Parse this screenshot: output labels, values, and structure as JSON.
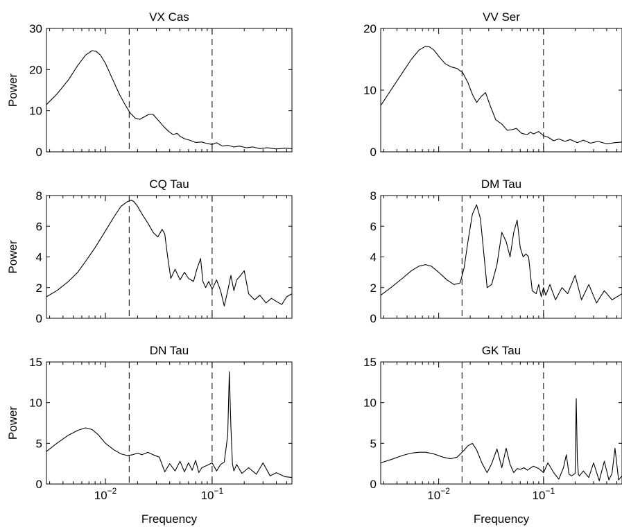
{
  "chart_data": [
    {
      "type": "line",
      "title": "VX Cas",
      "ylabel": "Power",
      "xlabel": "",
      "xscale": "log",
      "xlim": [
        0.0028,
        0.56
      ],
      "ylim": [
        0,
        30
      ],
      "yticks": [
        0,
        10,
        20,
        30
      ],
      "show_x_ticklabels": false,
      "reference_lines_x": [
        0.0167,
        0.1
      ],
      "series": [
        {
          "x": [
            0.0028,
            0.0035,
            0.0045,
            0.0055,
            0.0065,
            0.0075,
            0.0082,
            0.009,
            0.01,
            0.0115,
            0.0135,
            0.0155,
            0.017,
            0.019,
            0.021,
            0.023,
            0.0255,
            0.028,
            0.031,
            0.035,
            0.039,
            0.043,
            0.047,
            0.05,
            0.055,
            0.062,
            0.07,
            0.08,
            0.09,
            0.1,
            0.11,
            0.125,
            0.14,
            0.16,
            0.18,
            0.21,
            0.24,
            0.28,
            0.33,
            0.4,
            0.48,
            0.56
          ],
          "y": [
            11.5,
            14,
            17.5,
            21,
            23.5,
            24.6,
            24.4,
            23.5,
            21.5,
            18,
            14,
            11.2,
            9.5,
            8.2,
            7.9,
            8.5,
            9.1,
            9.1,
            7.8,
            6.2,
            5.0,
            4.2,
            4.5,
            3.8,
            3.2,
            2.8,
            2.3,
            2.4,
            2.0,
            1.8,
            2.2,
            1.4,
            1.6,
            1.2,
            1.4,
            1.0,
            1.2,
            0.8,
            1.0,
            0.7,
            0.9,
            0.8
          ]
        }
      ]
    },
    {
      "type": "line",
      "title": "VV Ser",
      "ylabel": "",
      "xlabel": "",
      "xscale": "log",
      "xlim": [
        0.0028,
        0.56
      ],
      "ylim": [
        0,
        20
      ],
      "yticks": [
        0,
        10,
        20
      ],
      "show_x_ticklabels": false,
      "reference_lines_x": [
        0.0167,
        0.1
      ],
      "series": [
        {
          "x": [
            0.0028,
            0.0035,
            0.0045,
            0.0055,
            0.0065,
            0.0075,
            0.0082,
            0.009,
            0.01,
            0.0115,
            0.013,
            0.015,
            0.017,
            0.019,
            0.021,
            0.023,
            0.0255,
            0.028,
            0.031,
            0.035,
            0.04,
            0.045,
            0.05,
            0.055,
            0.062,
            0.07,
            0.075,
            0.08,
            0.09,
            0.1,
            0.11,
            0.125,
            0.14,
            0.16,
            0.18,
            0.21,
            0.24,
            0.28,
            0.33,
            0.4,
            0.48,
            0.56
          ],
          "y": [
            7.5,
            10,
            12.8,
            15,
            16.5,
            17.1,
            17.0,
            16.5,
            15.5,
            14.3,
            13.8,
            13.5,
            12.8,
            11.2,
            9.3,
            8.0,
            9.0,
            9.6,
            7.5,
            5.2,
            4.5,
            3.5,
            3.6,
            3.8,
            3.0,
            2.8,
            3.2,
            2.9,
            3.3,
            2.6,
            2.4,
            1.8,
            2.1,
            1.7,
            2.0,
            1.5,
            1.9,
            1.4,
            1.7,
            1.3,
            1.5,
            1.6
          ]
        }
      ]
    },
    {
      "type": "line",
      "title": "CQ Tau",
      "ylabel": "Power",
      "xlabel": "",
      "xscale": "log",
      "xlim": [
        0.0028,
        0.56
      ],
      "ylim": [
        0,
        8
      ],
      "yticks": [
        0,
        2,
        4,
        6,
        8
      ],
      "show_x_ticklabels": false,
      "reference_lines_x": [
        0.0167,
        0.1
      ],
      "series": [
        {
          "x": [
            0.0028,
            0.0035,
            0.0045,
            0.0055,
            0.0065,
            0.008,
            0.01,
            0.012,
            0.014,
            0.016,
            0.0175,
            0.0185,
            0.02,
            0.022,
            0.025,
            0.028,
            0.031,
            0.034,
            0.036,
            0.038,
            0.041,
            0.045,
            0.05,
            0.055,
            0.06,
            0.067,
            0.072,
            0.078,
            0.082,
            0.087,
            0.093,
            0.1,
            0.11,
            0.12,
            0.13,
            0.14,
            0.15,
            0.16,
            0.17,
            0.185,
            0.2,
            0.22,
            0.25,
            0.28,
            0.32,
            0.36,
            0.4,
            0.45,
            0.5,
            0.56
          ],
          "y": [
            1.4,
            1.8,
            2.4,
            3.0,
            3.7,
            4.6,
            5.7,
            6.6,
            7.3,
            7.6,
            7.7,
            7.6,
            7.3,
            6.8,
            6.2,
            5.6,
            5.3,
            5.8,
            5.5,
            4.2,
            2.6,
            3.2,
            2.5,
            3.0,
            2.6,
            2.4,
            3.2,
            3.9,
            2.4,
            2.0,
            2.4,
            1.9,
            2.5,
            1.8,
            0.8,
            1.8,
            2.8,
            1.8,
            2.5,
            2.8,
            3.1,
            1.6,
            1.2,
            1.5,
            1.0,
            1.3,
            1.1,
            0.9,
            1.4,
            1.6
          ]
        }
      ]
    },
    {
      "type": "line",
      "title": "DM Tau",
      "ylabel": "",
      "xlabel": "",
      "xscale": "log",
      "xlim": [
        0.0028,
        0.56
      ],
      "ylim": [
        0,
        8
      ],
      "yticks": [
        0,
        2,
        4,
        6,
        8
      ],
      "show_x_ticklabels": false,
      "reference_lines_x": [
        0.0167,
        0.1
      ],
      "series": [
        {
          "x": [
            0.0028,
            0.0035,
            0.0045,
            0.0055,
            0.0065,
            0.0075,
            0.0085,
            0.01,
            0.012,
            0.014,
            0.016,
            0.0175,
            0.019,
            0.021,
            0.023,
            0.025,
            0.027,
            0.029,
            0.032,
            0.036,
            0.04,
            0.044,
            0.048,
            0.052,
            0.056,
            0.06,
            0.064,
            0.068,
            0.072,
            0.078,
            0.085,
            0.09,
            0.095,
            0.1,
            0.105,
            0.115,
            0.13,
            0.15,
            0.17,
            0.2,
            0.23,
            0.27,
            0.32,
            0.38,
            0.45,
            0.56
          ],
          "y": [
            1.5,
            2.0,
            2.6,
            3.1,
            3.4,
            3.5,
            3.4,
            3.0,
            2.5,
            2.2,
            2.3,
            3.3,
            5.0,
            6.8,
            7.4,
            6.5,
            4.2,
            2.0,
            2.2,
            3.5,
            5.6,
            5.0,
            4.0,
            5.6,
            6.4,
            4.6,
            4.0,
            4.2,
            4.0,
            1.8,
            1.6,
            2.2,
            1.4,
            2.0,
            1.5,
            2.2,
            1.2,
            2.0,
            1.6,
            2.8,
            1.2,
            2.2,
            1.0,
            1.8,
            1.2,
            1.6
          ]
        }
      ]
    },
    {
      "type": "line",
      "title": "DN Tau",
      "ylabel": "Power",
      "xlabel": "Frequency",
      "xscale": "log",
      "xlim": [
        0.0028,
        0.56
      ],
      "ylim": [
        0,
        15
      ],
      "yticks": [
        0,
        5,
        10,
        15
      ],
      "xticks": [
        0.01,
        0.1
      ],
      "show_x_ticklabels": true,
      "reference_lines_x": [
        0.0167,
        0.1
      ],
      "series": [
        {
          "x": [
            0.0028,
            0.0035,
            0.0045,
            0.0055,
            0.0065,
            0.0075,
            0.0085,
            0.01,
            0.012,
            0.014,
            0.016,
            0.018,
            0.02,
            0.022,
            0.025,
            0.028,
            0.032,
            0.036,
            0.04,
            0.045,
            0.05,
            0.055,
            0.06,
            0.065,
            0.07,
            0.075,
            0.08,
            0.09,
            0.1,
            0.11,
            0.12,
            0.13,
            0.14,
            0.145,
            0.15,
            0.155,
            0.16,
            0.17,
            0.19,
            0.22,
            0.26,
            0.3,
            0.35,
            0.4,
            0.48,
            0.56
          ],
          "y": [
            4.0,
            5.0,
            6.0,
            6.6,
            6.9,
            6.7,
            6.1,
            5.0,
            4.2,
            3.7,
            3.5,
            3.6,
            3.8,
            3.6,
            3.9,
            3.6,
            3.3,
            1.5,
            2.5,
            1.6,
            2.8,
            1.5,
            2.6,
            1.7,
            2.9,
            1.4,
            2.0,
            2.3,
            2.6,
            1.6,
            2.4,
            2.7,
            6.0,
            13.8,
            7.0,
            2.5,
            1.6,
            2.4,
            1.3,
            2.0,
            1.2,
            2.6,
            1.0,
            1.4,
            0.9,
            0.8
          ]
        }
      ]
    },
    {
      "type": "line",
      "title": "GK Tau",
      "ylabel": "",
      "xlabel": "Frequency",
      "xscale": "log",
      "xlim": [
        0.0028,
        0.56
      ],
      "ylim": [
        0,
        15
      ],
      "yticks": [
        0,
        5,
        10,
        15
      ],
      "xticks": [
        0.01,
        0.1
      ],
      "show_x_ticklabels": true,
      "reference_lines_x": [
        0.0167,
        0.1
      ],
      "series": [
        {
          "x": [
            0.0028,
            0.0035,
            0.0045,
            0.0055,
            0.0065,
            0.0075,
            0.009,
            0.011,
            0.013,
            0.015,
            0.017,
            0.019,
            0.021,
            0.023,
            0.026,
            0.029,
            0.032,
            0.036,
            0.04,
            0.044,
            0.048,
            0.052,
            0.056,
            0.06,
            0.065,
            0.07,
            0.08,
            0.09,
            0.1,
            0.11,
            0.125,
            0.14,
            0.155,
            0.165,
            0.175,
            0.185,
            0.2,
            0.205,
            0.21,
            0.215,
            0.22,
            0.24,
            0.27,
            0.3,
            0.34,
            0.38,
            0.42,
            0.45,
            0.48,
            0.52,
            0.56
          ],
          "y": [
            2.6,
            3.0,
            3.5,
            3.8,
            3.9,
            3.9,
            3.7,
            3.3,
            3.1,
            3.3,
            4.0,
            4.7,
            5.0,
            4.2,
            2.5,
            1.4,
            2.5,
            4.3,
            2.0,
            4.4,
            2.4,
            1.4,
            1.9,
            1.8,
            2.0,
            1.7,
            2.2,
            1.9,
            1.4,
            2.6,
            1.4,
            0.6,
            2.0,
            3.6,
            1.2,
            1.0,
            1.3,
            10.5,
            3.0,
            1.2,
            1.0,
            1.6,
            0.8,
            2.6,
            0.4,
            2.8,
            0.5,
            1.3,
            4.4,
            0.5,
            1.0
          ]
        }
      ]
    }
  ]
}
